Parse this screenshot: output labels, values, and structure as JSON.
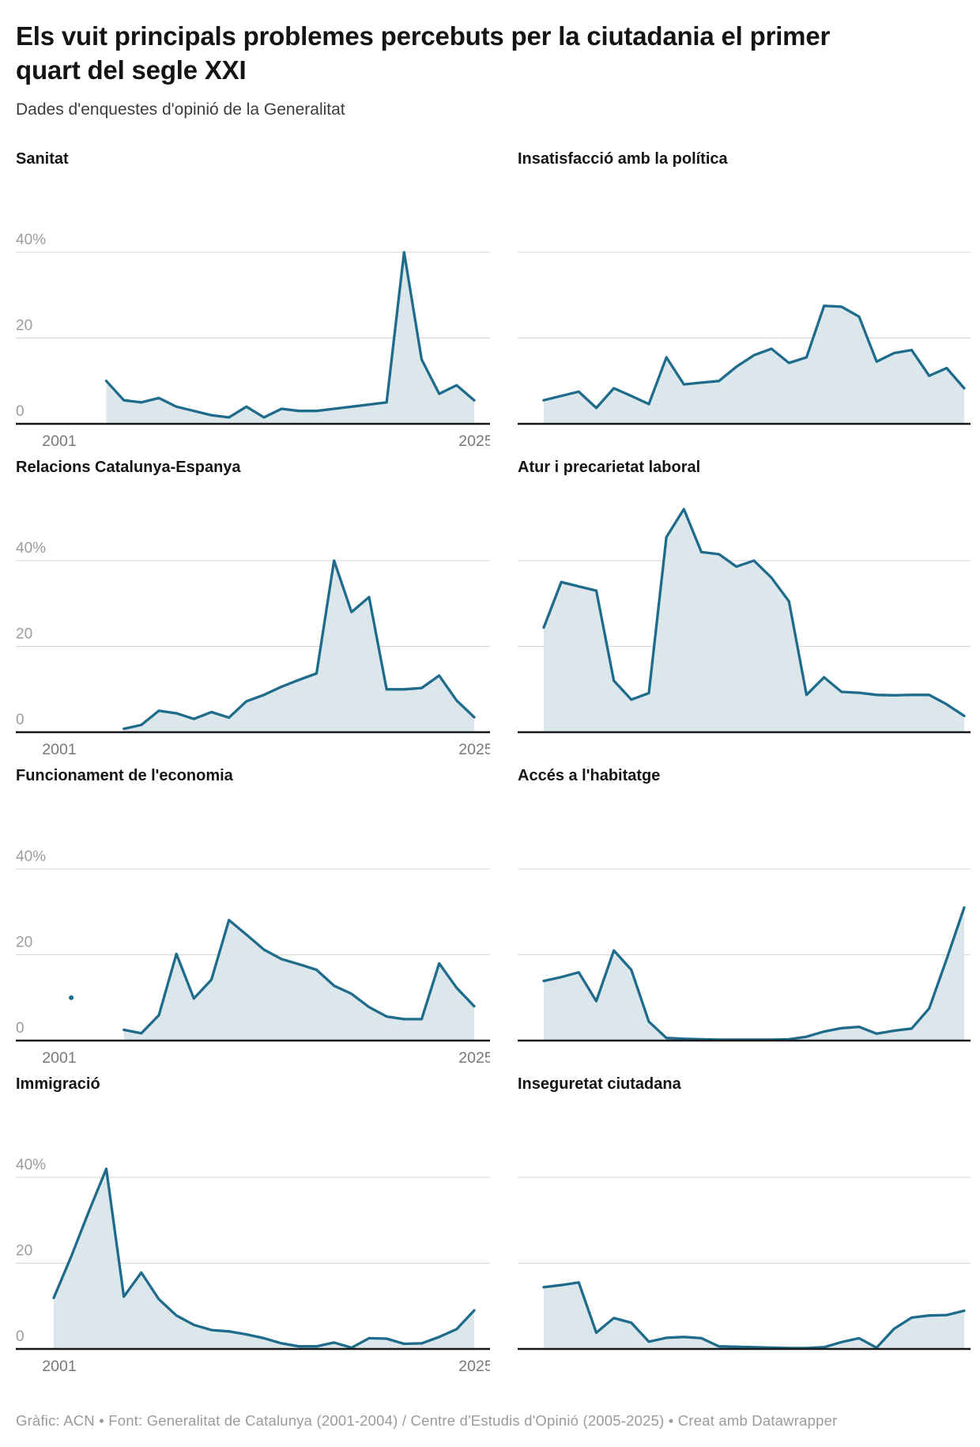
{
  "header": {
    "title": "Els vuit principals problemes percebuts per la ciutadania el primer quart del segle XXI",
    "subtitle": "Dades d'enquestes d'opinió de la Generalitat"
  },
  "footer": {
    "text": "Gràfic: ACN • Font: Generalitat de Catalunya (2001-2004) / Centre d'Estudis d'Opinió (2005-2025) • Creat amb Datawrapper"
  },
  "colors": {
    "line": "#1e6b8c",
    "fill": "#dce7ec",
    "grid": "#d9d9d9",
    "baseline": "#16181a",
    "y_label": "#9c9c9c",
    "x_label": "#787878",
    "title": "#141414",
    "panel_title": "#151515",
    "footer": "#9b9b9b"
  },
  "axis": {
    "y_ticks": [
      "40%",
      "20",
      "0"
    ],
    "y_tick_values": [
      40,
      20,
      0
    ],
    "x_first": "2001",
    "x_last": "2025",
    "grid_on": true,
    "legend": "none"
  },
  "chart_data": [
    {
      "type": "area",
      "title": "Sanitat",
      "unit": "%",
      "x_domain": [
        2001,
        2025
      ],
      "x_step_years": 1,
      "ylim": [
        0,
        40
      ],
      "show_y_labels": true,
      "show_x_labels": true,
      "start_year": 2004,
      "values": [
        10,
        5.5,
        5,
        6,
        4,
        3,
        2,
        1.5,
        4,
        1.5,
        3.5,
        3,
        3,
        3.5,
        4,
        4.5,
        5,
        40,
        15,
        7,
        9,
        5.5
      ]
    },
    {
      "type": "area",
      "title": "Insatisfacció amb la política",
      "unit": "%",
      "x_domain": [
        2001,
        2025
      ],
      "x_step_years": 1,
      "ylim": [
        0,
        40
      ],
      "show_y_labels": false,
      "show_x_labels": false,
      "start_year": 2001,
      "values": [
        5.5,
        6.5,
        7.5,
        3.7,
        8.3,
        6.5,
        4.6,
        15.5,
        9.2,
        9.6,
        10,
        13.3,
        16,
        17.5,
        14.2,
        15.5,
        27.5,
        27.3,
        25,
        14.5,
        16.5,
        17.2,
        11.2,
        13,
        8.3
      ]
    },
    {
      "type": "area",
      "title": "Relacions Catalunya-Espanya",
      "unit": "%",
      "x_domain": [
        2001,
        2025
      ],
      "x_step_years": 1,
      "ylim": [
        0,
        40
      ],
      "show_y_labels": true,
      "show_x_labels": true,
      "start_year": 2005,
      "values": [
        0.8,
        1.7,
        5,
        4.4,
        3.1,
        4.7,
        3.4,
        7.2,
        8.7,
        10.6,
        12.2,
        13.7,
        40,
        28,
        31.5,
        10,
        10,
        10.3,
        13.2,
        7.4,
        3.5
      ]
    },
    {
      "type": "area",
      "title": "Atur i precarietat laboral",
      "unit": "%",
      "x_domain": [
        2001,
        2025
      ],
      "x_step_years": 1,
      "ylim": [
        0,
        40
      ],
      "show_y_labels": false,
      "show_x_labels": false,
      "start_year": 2001,
      "values": [
        24.4,
        35,
        34,
        33,
        12,
        7.6,
        9.1,
        45.5,
        52,
        42,
        41.5,
        38.6,
        40,
        36,
        30.5,
        8.7,
        12.8,
        9.4,
        9.2,
        8.7,
        8.6,
        8.7,
        8.7,
        6.5,
        3.8
      ]
    },
    {
      "type": "area",
      "title": "Funcionament de l'economia",
      "unit": "%",
      "x_domain": [
        2001,
        2025
      ],
      "x_step_years": 1,
      "ylim": [
        0,
        40
      ],
      "show_y_labels": true,
      "show_x_labels": true,
      "start_year": 2005,
      "values": [
        2.5,
        1.7,
        5.9,
        20.2,
        9.8,
        14.2,
        28.1,
        24.7,
        21.2,
        19,
        17.8,
        16.5,
        12.8,
        10.9,
        7.8,
        5.6,
        5,
        5,
        18,
        12.3,
        8
      ],
      "isolated_point": {
        "year": 2002,
        "value": 10
      }
    },
    {
      "type": "area",
      "title": "Accés a l'habitatge",
      "unit": "%",
      "x_domain": [
        2001,
        2025
      ],
      "x_step_years": 1,
      "ylim": [
        0,
        40
      ],
      "show_y_labels": false,
      "show_x_labels": false,
      "start_year": 2001,
      "values": [
        13.9,
        14.8,
        15.9,
        9.2,
        21,
        16.5,
        4.4,
        0.6,
        0.4,
        0.3,
        0.2,
        0.2,
        0.2,
        0.2,
        0.3,
        0.9,
        2.1,
        2.9,
        3.2,
        1.6,
        2.3,
        2.8,
        7.5,
        19,
        31
      ]
    },
    {
      "type": "area",
      "title": "Immigració",
      "unit": "%",
      "x_domain": [
        2001,
        2025
      ],
      "x_step_years": 1,
      "ylim": [
        0,
        40
      ],
      "show_y_labels": true,
      "show_x_labels": true,
      "start_year": 2001,
      "values": [
        11.9,
        21.6,
        32,
        42,
        12.2,
        17.8,
        11.6,
        7.8,
        5.6,
        4.4,
        4.1,
        3.4,
        2.5,
        1.3,
        0.6,
        0.6,
        1.5,
        0.3,
        2.5,
        2.4,
        1.2,
        1.3,
        2.8,
        4.6,
        9
      ]
    },
    {
      "type": "area",
      "title": "Inseguretat ciutadana",
      "unit": "%",
      "x_domain": [
        2001,
        2025
      ],
      "x_step_years": 1,
      "ylim": [
        0,
        40
      ],
      "show_y_labels": false,
      "show_x_labels": false,
      "start_year": 2001,
      "values": [
        14.4,
        14.9,
        15.5,
        3.8,
        7.2,
        6.1,
        1.7,
        2.6,
        2.8,
        2.5,
        0.6,
        0.5,
        0.4,
        0.3,
        0.2,
        0.2,
        0.4,
        1.6,
        2.5,
        0.3,
        4.7,
        7.3,
        7.8,
        7.9,
        8.9
      ]
    }
  ]
}
